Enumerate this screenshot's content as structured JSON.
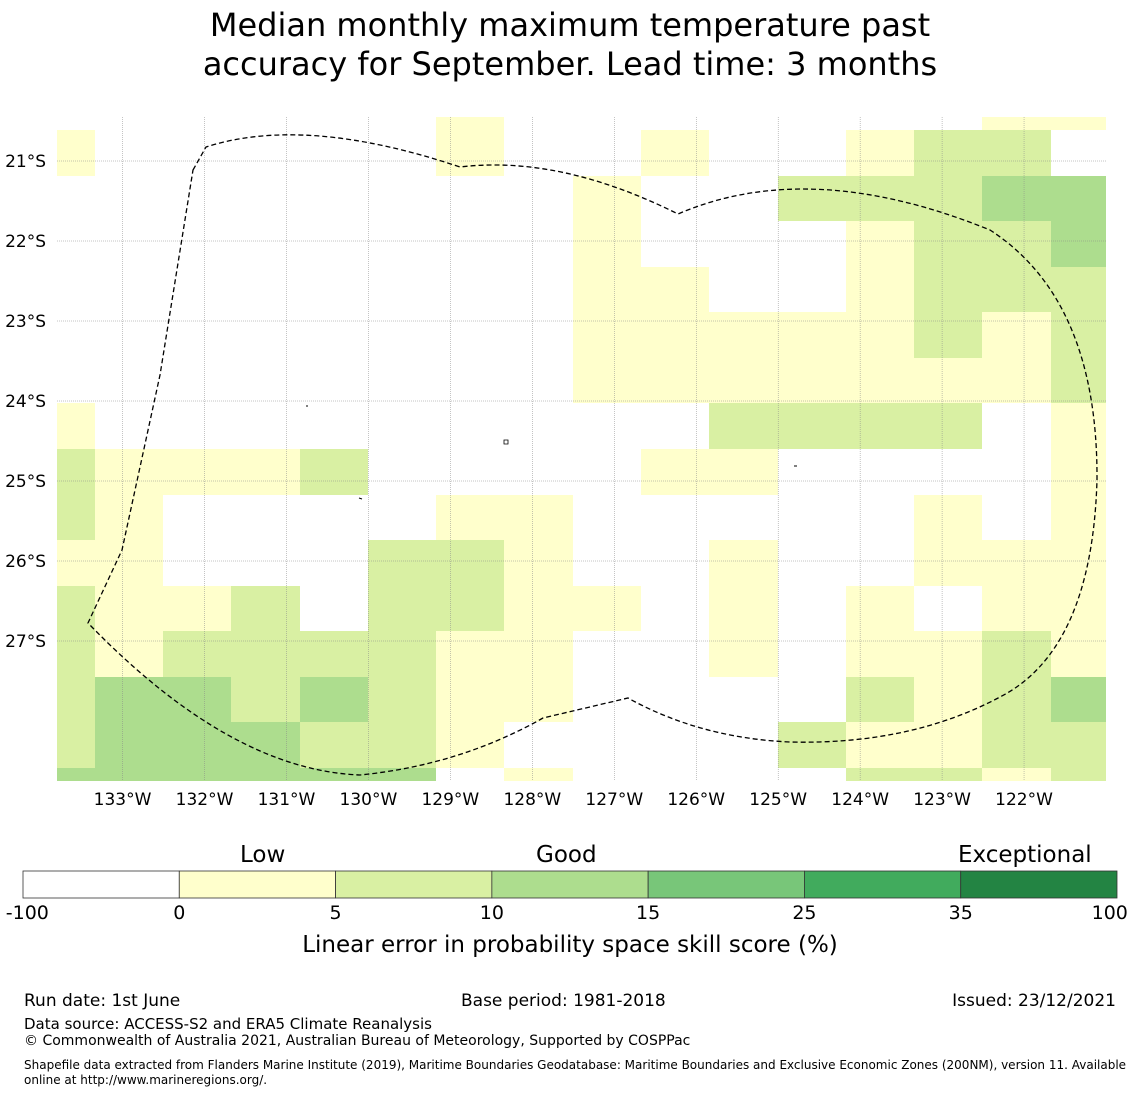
{
  "title": {
    "line1": "Median monthly maximum temperature past",
    "line2": "accuracy for September. Lead time: 3 months"
  },
  "map": {
    "lon_range": [
      -133.8,
      -121.0
    ],
    "lat_range": [
      -28.75,
      -20.45
    ],
    "lon_ticks": [
      -133,
      -132,
      -131,
      -130,
      -129,
      -128,
      -127,
      -126,
      -125,
      -124,
      -123,
      -122
    ],
    "lon_labels": [
      "133°W",
      "132°W",
      "131°W",
      "130°W",
      "129°W",
      "128°W",
      "127°W",
      "126°W",
      "125°W",
      "124°W",
      "123°W",
      "122°W"
    ],
    "lat_ticks": [
      -21,
      -22,
      -23,
      -24,
      -25,
      -26,
      -27
    ],
    "lat_labels": [
      "21°S",
      "22°S",
      "23°S",
      "24°S",
      "25°S",
      "26°S",
      "27°S"
    ],
    "colors": [
      "#ffffff",
      "#ffffcc",
      "#d9f0a3",
      "#addd8e",
      "#78c679",
      "#41ab5d",
      "#238443"
    ]
  },
  "colorbar": {
    "categories": [
      "Low",
      "Good",
      "Exceptional"
    ],
    "boundaries": [
      -100,
      0,
      5,
      10,
      15,
      25,
      35,
      100
    ],
    "boundary_labels": [
      "-100",
      "0",
      "5",
      "10",
      "15",
      "25",
      "35",
      "100"
    ],
    "colors": [
      "#ffffff",
      "#ffffcc",
      "#d9f0a3",
      "#addd8e",
      "#78c679",
      "#41ab5d",
      "#238443"
    ],
    "label": "Linear error in probability space skill score (%)"
  },
  "footer": {
    "run_date": "Run date: 1st June",
    "base_period": "Base period: 1981-2018",
    "issued": "Issued: 23/12/2021",
    "data_source": "Data source: ACCESS-S2 and ERA5 Climate Reanalysis",
    "copyright": "© Commonwealth of Australia 2021, Australian Bureau of Meteorology, Supported by COSPPac",
    "shapefile": "Shapefile data extracted from Flanders Marine Institute (2019), Maritime Boundaries Geodatabase: Maritime Boundaries and Exclusive Economic Zones (200NM), version 11. Available online at http://www.marineregions.org/."
  }
}
